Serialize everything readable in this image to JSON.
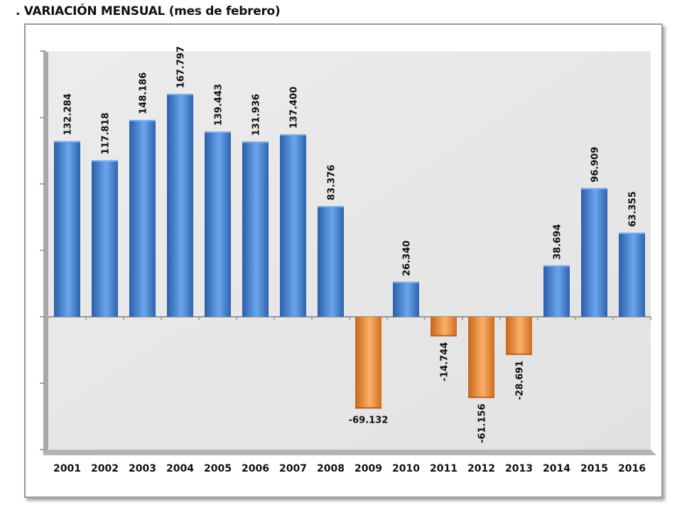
{
  "title": ". VARIACIÓN MENSUAL (mes de febrero)",
  "colors": {
    "positive": "#4a84d6",
    "negative": "#f0973c",
    "plot_background": "#e6e6e6",
    "wall": "#a8a8a8"
  },
  "chart_data": {
    "type": "bar",
    "title": "VARIACIÓN MENSUAL (mes de febrero)",
    "xlabel": "",
    "ylabel": "",
    "categories": [
      "2001",
      "2002",
      "2003",
      "2004",
      "2005",
      "2006",
      "2007",
      "2008",
      "2009",
      "2010",
      "2011",
      "2012",
      "2013",
      "2014",
      "2015",
      "2016"
    ],
    "values": [
      132.284,
      117.818,
      148.186,
      167.797,
      139.443,
      131.936,
      137.4,
      83.376,
      -69.132,
      26.34,
      -14.744,
      -61.156,
      -28.691,
      38.694,
      96.909,
      63.355
    ],
    "data_labels": [
      "132.284",
      "117.818",
      "148.186",
      "167.797",
      "139.443",
      "131.936",
      "137.400",
      "83.376",
      "-69.132",
      "26.340",
      "-14.744",
      "-61.156",
      "-28.691",
      "38.694",
      "96.909",
      "63.355"
    ],
    "ylim": [
      -100,
      200
    ],
    "yticks": [
      -100,
      -50,
      0,
      50,
      100,
      150,
      200
    ],
    "ytick_labels_visible": false,
    "grid": false,
    "legend": "none"
  }
}
